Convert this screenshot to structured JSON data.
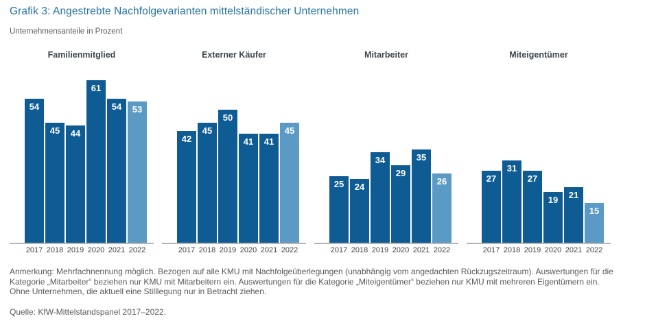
{
  "page": {
    "title": "Grafik 3: Angestrebte Nachfolgevarianten mittelständischer Unternehmen",
    "subtitle": "Unternehmensanteile in Prozent",
    "note_lines": [
      "Anmerkung: Mehrfachnennung möglich. Bezogen auf alle KMU mit Nachfolgeüberlegungen (unabhängig vom angedachten Rückzugszeitraum). Auswertungen für die",
      "Kategorie „Mitarbeiter“ beziehen nur KMU mit Mitarbeitern ein. Auswertungen für die Kategorie „Miteigentümer“ beziehen nur KMU mit mehreren Eigentümern ein.",
      "Ohne Unternehmen, die aktuell eine Stilllegung nur in Betracht ziehen."
    ],
    "source": "Quelle: KfW-Mittelstandspanel 2017–2022."
  },
  "chart_data": {
    "type": "bar",
    "title": "Grafik 3: Angestrebte Nachfolgevarianten mittelständischer Unternehmen",
    "ylabel": "Unternehmensanteile in Prozent",
    "categories": [
      "2017",
      "2018",
      "2019",
      "2020",
      "2021",
      "2022"
    ],
    "groups": [
      {
        "name": "Familienmitglied",
        "values": [
          54,
          45,
          44,
          61,
          54,
          53
        ]
      },
      {
        "name": "Externer Käufer",
        "values": [
          42,
          45,
          50,
          41,
          41,
          45
        ]
      },
      {
        "name": "Mitarbeiter",
        "values": [
          25,
          24,
          34,
          29,
          35,
          26
        ]
      },
      {
        "name": "Miteigentümer",
        "values": [
          27,
          31,
          27,
          19,
          21,
          15
        ]
      }
    ],
    "ylim": [
      0,
      65
    ],
    "value_labels": "inside-top",
    "legend_position": "none",
    "grid": false,
    "colors": {
      "bar": "#0f5c94",
      "bar_latest_year": "#5a9ac4",
      "baseline": "#b3b7ba",
      "title": "#2574a3",
      "value_label": "#ffffff"
    },
    "highlight_last_category": true
  }
}
